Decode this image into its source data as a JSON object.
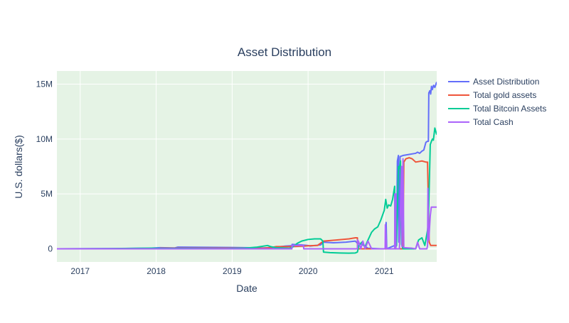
{
  "chart_data": {
    "type": "line",
    "title": "Asset Distribution",
    "xlabel": "Date",
    "ylabel": "U.S. dollars($)",
    "xlim": [
      "2016-09-11",
      "2021-09-10"
    ],
    "ylim": [
      -1200000,
      16200000
    ],
    "x_ticks": [
      "2017",
      "2018",
      "2019",
      "2020",
      "2021"
    ],
    "y_ticks": [
      {
        "value": 0,
        "label": "0"
      },
      {
        "value": 5000000,
        "label": "5M"
      },
      {
        "value": 10000000,
        "label": "10M"
      },
      {
        "value": 15000000,
        "label": "15M"
      }
    ],
    "grid": true,
    "legend_position": "right",
    "plot_background": "#e5f3e5",
    "series": [
      {
        "name": "Asset Distribution",
        "color": "#636efa",
        "points": [
          [
            "2016-09-11",
            0
          ],
          [
            "2017-06-01",
            20000
          ],
          [
            "2017-12-01",
            50000
          ],
          [
            "2018-01-20",
            100000
          ],
          [
            "2018-04-01",
            80000
          ],
          [
            "2018-04-15",
            150000
          ],
          [
            "2019-01-01",
            120000
          ],
          [
            "2019-06-01",
            80000
          ],
          [
            "2019-08-01",
            150000
          ],
          [
            "2019-09-15",
            250000
          ],
          [
            "2019-10-15",
            280000
          ],
          [
            "2019-10-16",
            400000
          ],
          [
            "2019-12-01",
            350000
          ],
          [
            "2020-01-01",
            300000
          ],
          [
            "2020-01-10",
            250000
          ],
          [
            "2020-03-01",
            350000
          ],
          [
            "2020-03-15",
            600000
          ],
          [
            "2020-05-01",
            550000
          ],
          [
            "2020-07-01",
            600000
          ],
          [
            "2020-08-15",
            700000
          ],
          [
            "2020-08-25",
            500000
          ],
          [
            "2020-09-15",
            400000
          ],
          [
            "2020-10-15",
            50000
          ],
          [
            "2020-12-15",
            0
          ],
          [
            "2021-01-05",
            0
          ],
          [
            "2021-01-10",
            2400000
          ],
          [
            "2021-01-13",
            0
          ],
          [
            "2021-02-20",
            300000
          ],
          [
            "2021-03-01",
            300000
          ],
          [
            "2021-03-05",
            8000000
          ],
          [
            "2021-03-10",
            8500000
          ],
          [
            "2021-03-12",
            600000
          ],
          [
            "2021-03-18",
            8400000
          ],
          [
            "2021-04-01",
            8500000
          ],
          [
            "2021-05-01",
            8600000
          ],
          [
            "2021-06-01",
            8700000
          ],
          [
            "2021-06-10",
            8800000
          ],
          [
            "2021-06-20",
            8700000
          ],
          [
            "2021-07-01",
            8900000
          ],
          [
            "2021-07-10",
            9000000
          ],
          [
            "2021-07-20",
            9700000
          ],
          [
            "2021-07-28",
            9800000
          ],
          [
            "2021-08-01",
            9800000
          ],
          [
            "2021-08-03",
            14200000
          ],
          [
            "2021-08-08",
            14400000
          ],
          [
            "2021-08-12",
            14100000
          ],
          [
            "2021-08-16",
            14800000
          ],
          [
            "2021-08-20",
            14500000
          ],
          [
            "2021-08-26",
            14900000
          ],
          [
            "2021-09-01",
            14700000
          ],
          [
            "2021-09-10",
            15200000
          ]
        ]
      },
      {
        "name": "Total gold assets",
        "color": "#ef553b",
        "points": [
          [
            "2016-09-11",
            0
          ],
          [
            "2018-01-20",
            0
          ],
          [
            "2018-01-21",
            50000
          ],
          [
            "2019-06-01",
            50000
          ],
          [
            "2019-07-01",
            100000
          ],
          [
            "2019-08-01",
            200000
          ],
          [
            "2019-10-15",
            200000
          ],
          [
            "2019-12-15",
            250000
          ],
          [
            "2020-01-10",
            280000
          ],
          [
            "2020-02-15",
            300000
          ],
          [
            "2020-03-15",
            700000
          ],
          [
            "2020-05-15",
            800000
          ],
          [
            "2020-07-15",
            900000
          ],
          [
            "2020-08-15",
            1000000
          ],
          [
            "2020-08-25",
            1000000
          ],
          [
            "2020-08-26",
            0
          ],
          [
            "2021-01-05",
            0
          ],
          [
            "2021-01-06",
            0
          ],
          [
            "2021-02-20",
            0
          ],
          [
            "2021-02-21",
            0
          ],
          [
            "2021-03-15",
            0
          ],
          [
            "2021-04-01",
            0
          ],
          [
            "2021-04-05",
            7900000
          ],
          [
            "2021-04-15",
            8200000
          ],
          [
            "2021-05-01",
            8300000
          ],
          [
            "2021-05-15",
            8200000
          ],
          [
            "2021-06-01",
            7900000
          ],
          [
            "2021-07-01",
            8000000
          ],
          [
            "2021-07-20",
            7900000
          ],
          [
            "2021-07-28",
            7900000
          ],
          [
            "2021-08-01",
            4000000
          ],
          [
            "2021-08-05",
            600000
          ],
          [
            "2021-08-12",
            300000
          ],
          [
            "2021-09-10",
            300000
          ]
        ]
      },
      {
        "name": "Total Bitcoin Assets",
        "color": "#00cc96",
        "points": [
          [
            "2016-09-11",
            0
          ],
          [
            "2017-06-01",
            10000
          ],
          [
            "2017-12-15",
            60000
          ],
          [
            "2018-01-15",
            40000
          ],
          [
            "2018-06-01",
            30000
          ],
          [
            "2018-12-01",
            10000
          ],
          [
            "2019-03-01",
            50000
          ],
          [
            "2019-05-01",
            150000
          ],
          [
            "2019-06-20",
            300000
          ],
          [
            "2019-07-05",
            200000
          ],
          [
            "2019-08-01",
            100000
          ],
          [
            "2019-09-01",
            80000
          ],
          [
            "2019-10-01",
            50000
          ],
          [
            "2019-10-15",
            100000
          ],
          [
            "2019-11-10",
            500000
          ],
          [
            "2019-12-01",
            700000
          ],
          [
            "2020-01-01",
            850000
          ],
          [
            "2020-02-01",
            900000
          ],
          [
            "2020-03-01",
            900000
          ],
          [
            "2020-03-12",
            700000
          ],
          [
            "2020-03-15",
            -300000
          ],
          [
            "2020-04-15",
            -350000
          ],
          [
            "2020-06-01",
            -380000
          ],
          [
            "2020-07-15",
            -400000
          ],
          [
            "2020-08-15",
            -380000
          ],
          [
            "2020-08-25",
            -300000
          ],
          [
            "2020-09-01",
            300000
          ],
          [
            "2020-09-15",
            600000
          ],
          [
            "2020-10-01",
            200000
          ],
          [
            "2020-10-15",
            800000
          ],
          [
            "2020-11-01",
            1500000
          ],
          [
            "2020-11-15",
            1800000
          ],
          [
            "2020-12-01",
            2000000
          ],
          [
            "2020-12-15",
            2600000
          ],
          [
            "2021-01-01",
            3500000
          ],
          [
            "2021-01-08",
            4500000
          ],
          [
            "2021-01-15",
            3700000
          ],
          [
            "2021-01-22",
            4000000
          ],
          [
            "2021-02-01",
            3900000
          ],
          [
            "2021-02-10",
            4500000
          ],
          [
            "2021-02-20",
            5700000
          ],
          [
            "2021-02-21",
            0
          ],
          [
            "2021-03-01",
            300000
          ],
          [
            "2021-03-10",
            7500000
          ],
          [
            "2021-03-15",
            7300000
          ],
          [
            "2021-03-20",
            8000000
          ],
          [
            "2021-03-25",
            400000
          ],
          [
            "2021-04-01",
            0
          ],
          [
            "2021-06-01",
            0
          ],
          [
            "2021-06-15",
            800000
          ],
          [
            "2021-07-01",
            1000000
          ],
          [
            "2021-07-15",
            300000
          ],
          [
            "2021-07-28",
            1700000
          ],
          [
            "2021-08-01",
            2500000
          ],
          [
            "2021-08-10",
            9500000
          ],
          [
            "2021-08-20",
            10000000
          ],
          [
            "2021-08-25",
            9900000
          ],
          [
            "2021-09-01",
            11000000
          ],
          [
            "2021-09-10",
            10400000
          ]
        ]
      },
      {
        "name": "Total Cash",
        "color": "#ab63fa",
        "points": [
          [
            "2016-09-11",
            0
          ],
          [
            "2019-10-15",
            0
          ],
          [
            "2019-10-16",
            300000
          ],
          [
            "2019-12-10",
            300000
          ],
          [
            "2019-12-11",
            0
          ],
          [
            "2020-03-15",
            0
          ],
          [
            "2020-08-25",
            0
          ],
          [
            "2020-08-26",
            800000
          ],
          [
            "2020-09-01",
            600000
          ],
          [
            "2020-09-10",
            0
          ],
          [
            "2020-09-20",
            700000
          ],
          [
            "2020-10-01",
            0
          ],
          [
            "2020-10-15",
            700000
          ],
          [
            "2020-11-01",
            0
          ],
          [
            "2021-01-05",
            0
          ],
          [
            "2021-01-06",
            2200000
          ],
          [
            "2021-01-12",
            0
          ],
          [
            "2021-02-20",
            0
          ],
          [
            "2021-02-21",
            5000000
          ],
          [
            "2021-02-25",
            5000000
          ],
          [
            "2021-02-26",
            0
          ],
          [
            "2021-03-15",
            0
          ],
          [
            "2021-03-25",
            7500000
          ],
          [
            "2021-03-27",
            200000
          ],
          [
            "2021-04-01",
            8200000
          ],
          [
            "2021-04-05",
            100000
          ],
          [
            "2021-05-15",
            50000
          ],
          [
            "2021-06-01",
            0
          ],
          [
            "2021-06-10",
            600000
          ],
          [
            "2021-06-20",
            0
          ],
          [
            "2021-07-25",
            0
          ],
          [
            "2021-07-28",
            300000
          ],
          [
            "2021-07-30",
            5500000
          ],
          [
            "2021-08-01",
            2000000
          ],
          [
            "2021-08-03",
            800000
          ],
          [
            "2021-08-10",
            3000000
          ],
          [
            "2021-08-15",
            3800000
          ],
          [
            "2021-09-10",
            3800000
          ]
        ]
      }
    ]
  }
}
